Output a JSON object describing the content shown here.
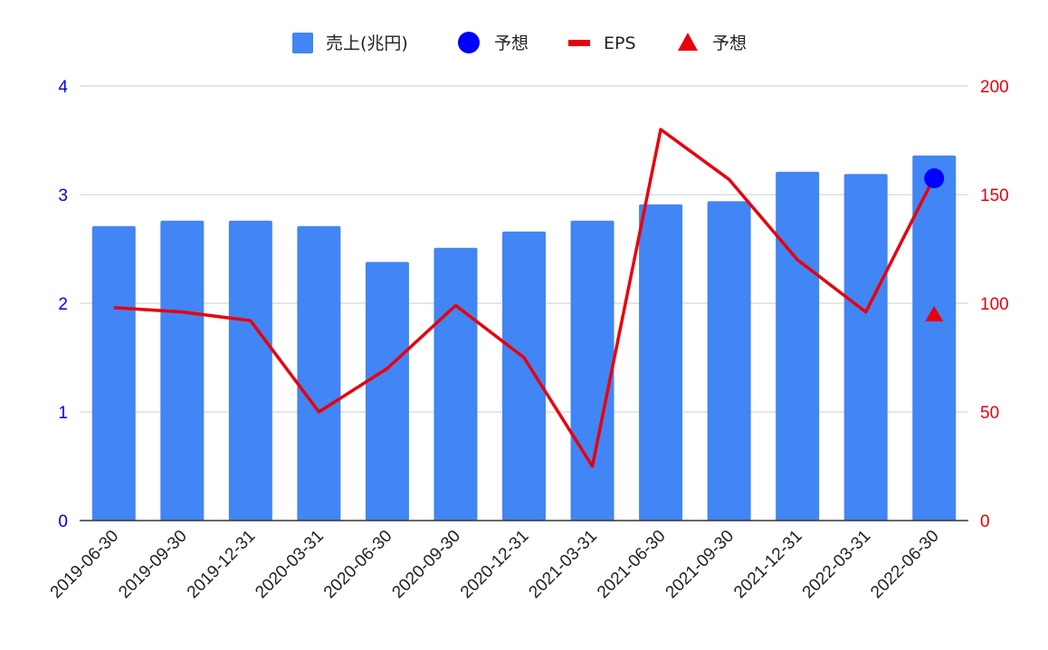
{
  "chart_data": {
    "type": "bar",
    "categories": [
      "2019-06-30",
      "2019-09-30",
      "2019-12-31",
      "2020-03-31",
      "2020-06-30",
      "2020-09-30",
      "2020-12-31",
      "2021-03-31",
      "2021-06-30",
      "2021-09-30",
      "2021-12-31",
      "2022-03-31",
      "2022-06-30"
    ],
    "series": [
      {
        "name": "売上(兆円)",
        "type": "bar",
        "axis": "left",
        "color": "#4285f4",
        "values": [
          2.71,
          2.76,
          2.76,
          2.71,
          2.38,
          2.51,
          2.66,
          2.76,
          2.91,
          2.94,
          3.21,
          3.19,
          3.36
        ]
      },
      {
        "name": "予想",
        "type": "point",
        "marker": "circle",
        "axis": "left",
        "color": "#0000ff",
        "points": [
          {
            "x": "2022-06-30",
            "y": 3.15
          }
        ]
      },
      {
        "name": "EPS",
        "type": "line",
        "axis": "right",
        "color": "#e8000b",
        "values": [
          98,
          96,
          92,
          50,
          70,
          99,
          75,
          25,
          180,
          157,
          120,
          96,
          158
        ]
      },
      {
        "name": "予想",
        "type": "point",
        "marker": "triangle",
        "axis": "right",
        "color": "#e8000b",
        "points": [
          {
            "x": "2022-06-30",
            "y": 95
          }
        ]
      }
    ],
    "left_axis": {
      "ylim": [
        0,
        4
      ],
      "ticks": [
        "0",
        "1",
        "2",
        "3",
        "4"
      ],
      "color": "#0000ee"
    },
    "right_axis": {
      "ylim": [
        0,
        200
      ],
      "ticks": [
        "0",
        "50",
        "100",
        "150",
        "200"
      ],
      "color": "#e8000b"
    },
    "grid": true,
    "legend": "top-center"
  }
}
